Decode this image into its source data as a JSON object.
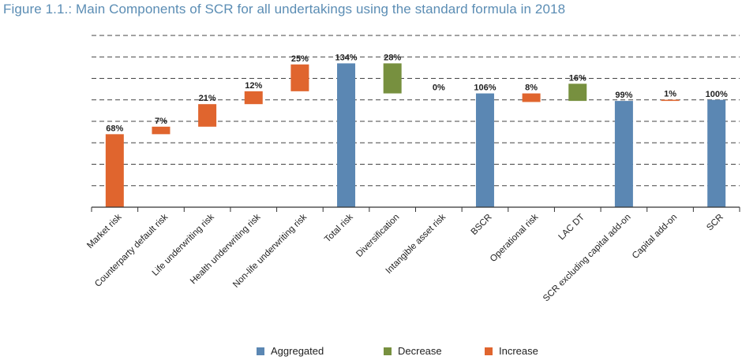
{
  "title": "Figure 1.1.: Main Components of SCR for all undertakings using the standard formula in 2018",
  "colors": {
    "Aggregated": "#5b87b3",
    "Decrease": "#77903f",
    "Increase": "#e0652e",
    "grid": "#444444",
    "axis": "#333333"
  },
  "chart_data": {
    "type": "bar",
    "subtype": "waterfall",
    "ylim": [
      0,
      160
    ],
    "grid": true,
    "legend_position": "bottom",
    "legend": [
      "Aggregated",
      "Decrease",
      "Increase"
    ],
    "categories": [
      "Market risk",
      "Counterparty default risk",
      "Life underwriting risk",
      "Health underwriting risk",
      "Non-life underwriting risk",
      "Total risk",
      "Diversification",
      "Intangible asset risk",
      "BSCR",
      "Operational risk",
      "LAC DT",
      "SCR excluding capital add-on",
      "Capital add-on",
      "SCR"
    ],
    "values": [
      68,
      7,
      21,
      12,
      25,
      134,
      28,
      0,
      106,
      8,
      16,
      99,
      1,
      100
    ],
    "bases": [
      0,
      68,
      75,
      96,
      108,
      0,
      106,
      106,
      0,
      98,
      99,
      0,
      99,
      0
    ],
    "kinds": [
      "Increase",
      "Increase",
      "Increase",
      "Increase",
      "Increase",
      "Aggregated",
      "Decrease",
      "Increase",
      "Aggregated",
      "Increase",
      "Decrease",
      "Aggregated",
      "Increase",
      "Aggregated"
    ],
    "labels": [
      "68%",
      "7%",
      "21%",
      "12%",
      "25%",
      "134%",
      "28%",
      "0%",
      "106%",
      "8%",
      "16%",
      "99%",
      "1%",
      "100%"
    ]
  }
}
